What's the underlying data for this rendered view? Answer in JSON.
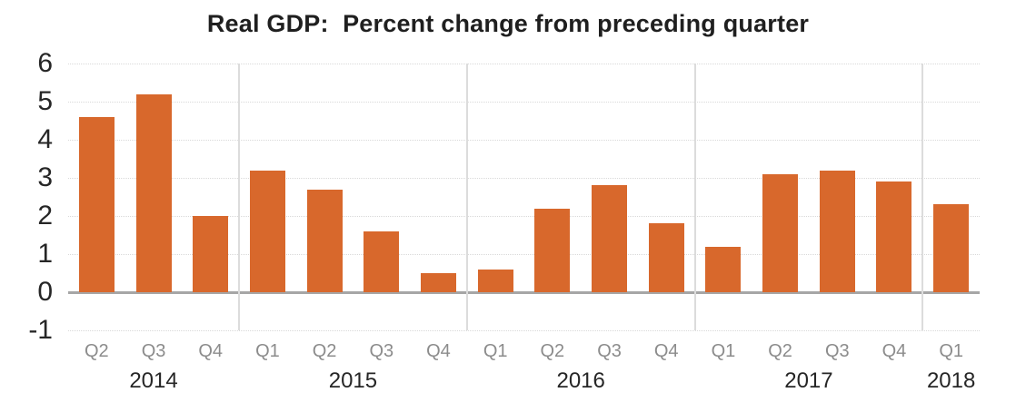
{
  "title": "Real GDP:  Percent change from preceding quarter",
  "colors": {
    "bar": "#d8682c",
    "gridline": "#d9d9d9",
    "year_separator": "#dcdcdc",
    "zero_axis": "#a6a6a6",
    "quarter_label": "#8c8c8c",
    "year_label": "#262626",
    "y_tick_label": "#262626",
    "title": "#1f1f1f",
    "background": "#ffffff"
  },
  "chart_data": {
    "type": "bar",
    "title": "Real GDP:  Percent change from preceding quarter",
    "categories": [
      "Q2",
      "Q3",
      "Q4",
      "Q1",
      "Q2",
      "Q3",
      "Q4",
      "Q1",
      "Q2",
      "Q3",
      "Q4",
      "Q1",
      "Q2",
      "Q3",
      "Q4",
      "Q1"
    ],
    "values": [
      4.6,
      5.2,
      2.0,
      3.2,
      2.7,
      1.6,
      0.5,
      0.6,
      2.2,
      2.8,
      1.8,
      1.2,
      3.1,
      3.2,
      2.9,
      2.3
    ],
    "year_groups": [
      {
        "label": "2014",
        "quarters": 3
      },
      {
        "label": "2015",
        "quarters": 4
      },
      {
        "label": "2016",
        "quarters": 4
      },
      {
        "label": "2017",
        "quarters": 4
      },
      {
        "label": "2018",
        "quarters": 1
      }
    ],
    "xlabel": "",
    "ylabel": "",
    "ylim": [
      -1,
      6
    ],
    "y_ticks": [
      6,
      5,
      4,
      3,
      2,
      1,
      0,
      -1
    ],
    "grid": true,
    "legend": null,
    "series_name": "Real GDP percent change",
    "bar_color": "#d8682c"
  }
}
